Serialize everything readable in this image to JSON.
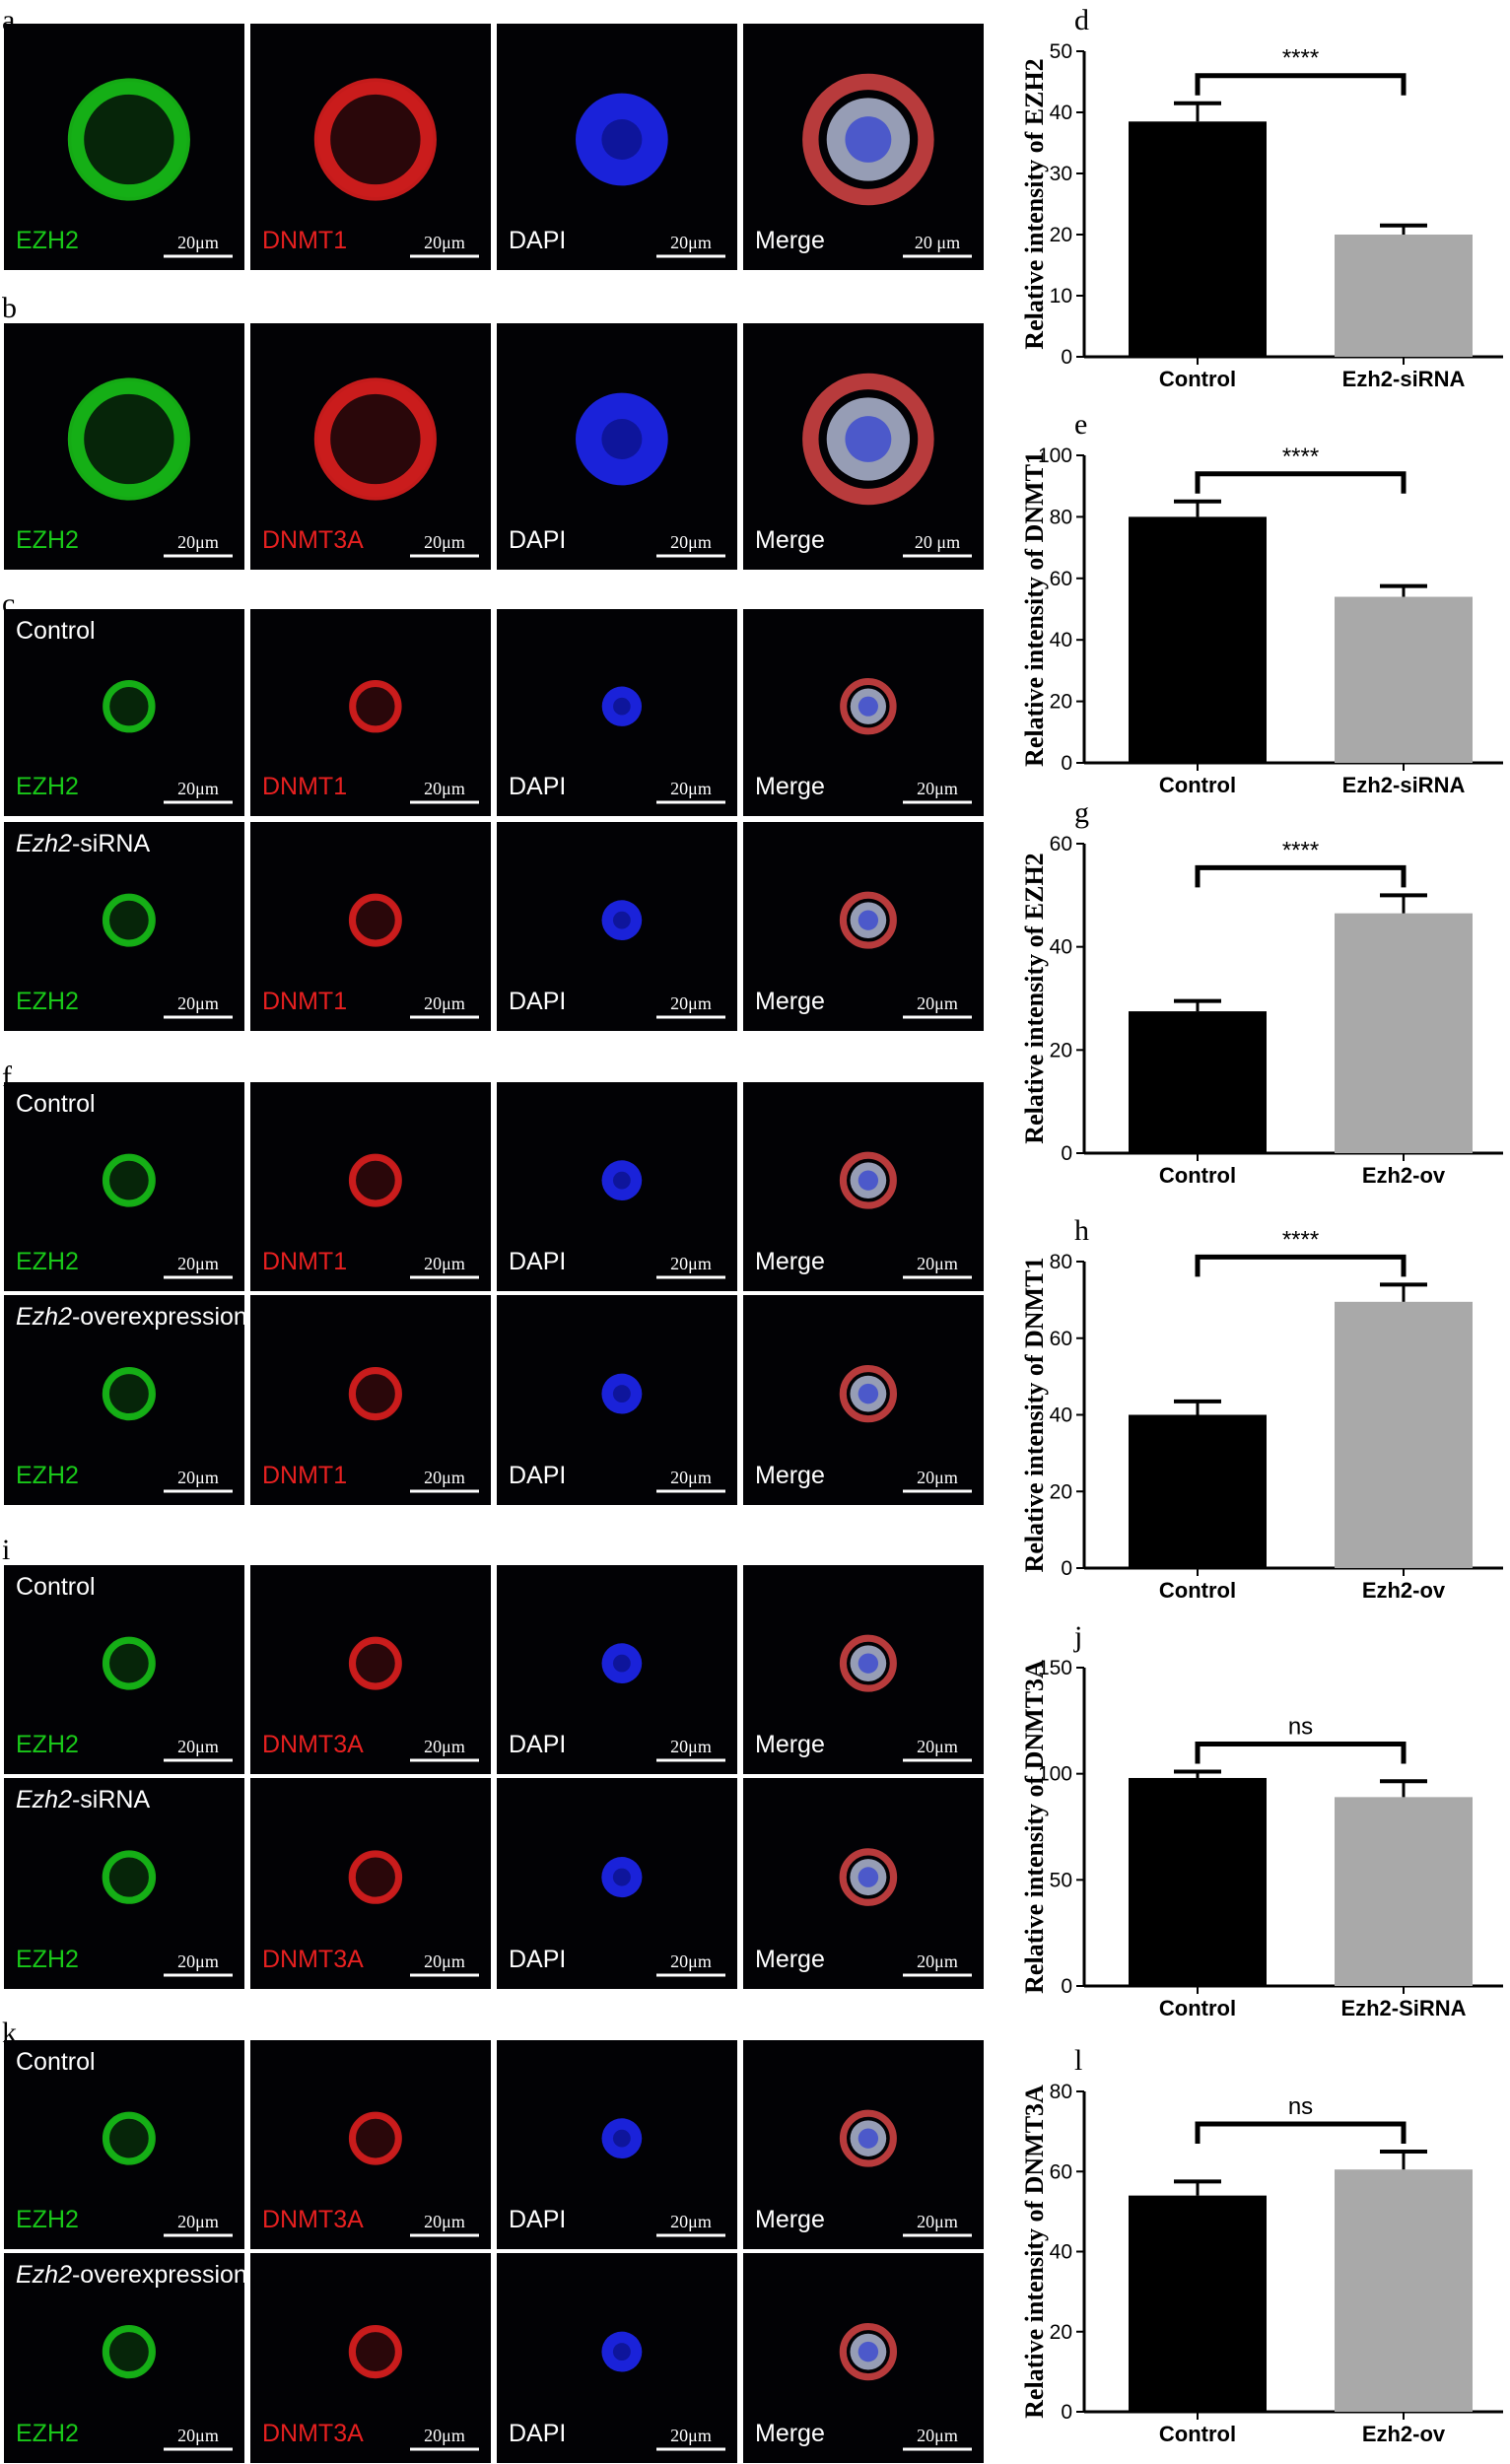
{
  "figure": {
    "micro_panels": [
      {
        "letter": "a",
        "rows": [
          {
            "title": "",
            "italic": "",
            "cells": [
              {
                "label": "EZH2",
                "color": "#19c819",
                "scale": "20μm",
                "kind": "ring"
              },
              {
                "label": "DNMT1",
                "color": "#e62020",
                "scale": "20μm",
                "kind": "ring"
              },
              {
                "label": "DAPI",
                "color": "#ffffff",
                "scale": "20μm",
                "kind": "nucleus"
              },
              {
                "label": "Merge",
                "color": "#ffffff",
                "scale": "20 μm",
                "kind": "merge"
              }
            ]
          }
        ]
      },
      {
        "letter": "b",
        "rows": [
          {
            "title": "",
            "italic": "",
            "cells": [
              {
                "label": "EZH2",
                "color": "#19c819",
                "scale": "20μm",
                "kind": "ring"
              },
              {
                "label": "DNMT3A",
                "color": "#e62020",
                "scale": "20μm",
                "kind": "ring"
              },
              {
                "label": "DAPI",
                "color": "#ffffff",
                "scale": "20μm",
                "kind": "nucleus"
              },
              {
                "label": "Merge",
                "color": "#ffffff",
                "scale": "20 μm",
                "kind": "merge"
              }
            ]
          }
        ]
      },
      {
        "letter": "c",
        "rows": [
          {
            "title": "Control",
            "italic": "",
            "cells": [
              {
                "label": "EZH2",
                "color": "#19c819",
                "scale": "20μm",
                "kind": "ring"
              },
              {
                "label": "DNMT1",
                "color": "#e62020",
                "scale": "20μm",
                "kind": "ring"
              },
              {
                "label": "DAPI",
                "color": "#ffffff",
                "scale": "20μm",
                "kind": "nucleus"
              },
              {
                "label": "Merge",
                "color": "#ffffff",
                "scale": "20μm",
                "kind": "merge"
              }
            ]
          },
          {
            "title": "-siRNA",
            "italic": "Ezh2",
            "cells": [
              {
                "label": "EZH2",
                "color": "#19c819",
                "scale": "20μm",
                "kind": "ring"
              },
              {
                "label": "DNMT1",
                "color": "#e62020",
                "scale": "20μm",
                "kind": "ring"
              },
              {
                "label": "DAPI",
                "color": "#ffffff",
                "scale": "20μm",
                "kind": "nucleus"
              },
              {
                "label": "Merge",
                "color": "#ffffff",
                "scale": "20μm",
                "kind": "merge"
              }
            ]
          }
        ]
      },
      {
        "letter": "f",
        "rows": [
          {
            "title": "Control",
            "italic": "",
            "cells": [
              {
                "label": "EZH2",
                "color": "#19c819",
                "scale": "20μm",
                "kind": "ring"
              },
              {
                "label": "DNMT1",
                "color": "#e62020",
                "scale": "20μm",
                "kind": "ring"
              },
              {
                "label": "DAPI",
                "color": "#ffffff",
                "scale": "20μm",
                "kind": "nucleus"
              },
              {
                "label": "Merge",
                "color": "#ffffff",
                "scale": "20μm",
                "kind": "merge"
              }
            ]
          },
          {
            "title": "-overexpression",
            "italic": "Ezh2",
            "cells": [
              {
                "label": "EZH2",
                "color": "#19c819",
                "scale": "20μm",
                "kind": "ring"
              },
              {
                "label": "DNMT1",
                "color": "#e62020",
                "scale": "20μm",
                "kind": "ring"
              },
              {
                "label": "DAPI",
                "color": "#ffffff",
                "scale": "20μm",
                "kind": "nucleus"
              },
              {
                "label": "Merge",
                "color": "#ffffff",
                "scale": "20μm",
                "kind": "merge"
              }
            ]
          }
        ]
      },
      {
        "letter": "i",
        "rows": [
          {
            "title": "Control",
            "italic": "",
            "cells": [
              {
                "label": "EZH2",
                "color": "#19c819",
                "scale": "20μm",
                "kind": "ring"
              },
              {
                "label": "DNMT3A",
                "color": "#e62020",
                "scale": "20μm",
                "kind": "ring"
              },
              {
                "label": "DAPI",
                "color": "#ffffff",
                "scale": "20μm",
                "kind": "nucleus"
              },
              {
                "label": "Merge",
                "color": "#ffffff",
                "scale": "20μm",
                "kind": "merge"
              }
            ]
          },
          {
            "title": "-siRNA",
            "italic": "Ezh2",
            "cells": [
              {
                "label": "EZH2",
                "color": "#19c819",
                "scale": "20μm",
                "kind": "ring"
              },
              {
                "label": "DNMT3A",
                "color": "#e62020",
                "scale": "20μm",
                "kind": "ring"
              },
              {
                "label": "DAPI",
                "color": "#ffffff",
                "scale": "20μm",
                "kind": "nucleus"
              },
              {
                "label": "Merge",
                "color": "#ffffff",
                "scale": "20μm",
                "kind": "merge"
              }
            ]
          }
        ]
      },
      {
        "letter": "k",
        "rows": [
          {
            "title": "Control",
            "italic": "",
            "cells": [
              {
                "label": "EZH2",
                "color": "#19c819",
                "scale": "20μm",
                "kind": "ring"
              },
              {
                "label": "DNMT3A",
                "color": "#e62020",
                "scale": "20μm",
                "kind": "ring"
              },
              {
                "label": "DAPI",
                "color": "#ffffff",
                "scale": "20μm",
                "kind": "nucleus"
              },
              {
                "label": "Merge",
                "color": "#ffffff",
                "scale": "20μm",
                "kind": "merge"
              }
            ]
          },
          {
            "title": "-overexpression",
            "italic": "Ezh2",
            "cells": [
              {
                "label": "EZH2",
                "color": "#19c819",
                "scale": "20μm",
                "kind": "ring"
              },
              {
                "label": "DNMT3A",
                "color": "#e62020",
                "scale": "20μm",
                "kind": "ring"
              },
              {
                "label": "DAPI",
                "color": "#ffffff",
                "scale": "20μm",
                "kind": "nucleus"
              },
              {
                "label": "Merge",
                "color": "#ffffff",
                "scale": "20μm",
                "kind": "merge"
              }
            ]
          }
        ]
      }
    ],
    "colors": {
      "control_bar": "#000000",
      "treatment_bar": "#a9a9a9",
      "dapi": "#1e28ff"
    }
  },
  "chart_data": [
    {
      "letter": "d",
      "type": "bar",
      "ylabel": "Relative intensity of EZH2",
      "categories": [
        "Control",
        "Ezh2-siRNA"
      ],
      "values": [
        38.5,
        20
      ],
      "errors": [
        3,
        1.5
      ],
      "ylim": [
        0,
        50
      ],
      "yticks": [
        0,
        10,
        20,
        30,
        40,
        50
      ],
      "significance": "****"
    },
    {
      "letter": "e",
      "type": "bar",
      "ylabel": "Relative intensity of DNMT1",
      "categories": [
        "Control",
        "Ezh2-siRNA"
      ],
      "values": [
        80,
        54
      ],
      "errors": [
        5,
        3.5
      ],
      "ylim": [
        0,
        100
      ],
      "yticks": [
        0,
        20,
        40,
        60,
        80,
        100
      ],
      "significance": "****"
    },
    {
      "letter": "g",
      "type": "bar",
      "ylabel": "Relative intensity of EZH2",
      "categories": [
        "Control",
        "Ezh2-ov"
      ],
      "values": [
        27.5,
        46.5
      ],
      "errors": [
        2,
        3.5
      ],
      "ylim": [
        0,
        60
      ],
      "yticks": [
        0,
        20,
        40,
        60
      ],
      "significance": "****"
    },
    {
      "letter": "h",
      "type": "bar",
      "ylabel": "Relative intensity of DNMT1",
      "categories": [
        "Control",
        "Ezh2-ov"
      ],
      "values": [
        40,
        69.5
      ],
      "errors": [
        3.5,
        4.5
      ],
      "ylim": [
        0,
        80
      ],
      "yticks": [
        0,
        20,
        40,
        60,
        80
      ],
      "significance": "****"
    },
    {
      "letter": "j",
      "type": "bar",
      "ylabel": "Relative intensity of DNMT3A",
      "categories": [
        "Control",
        "Ezh2-SiRNA"
      ],
      "values": [
        98,
        89
      ],
      "errors": [
        3,
        7.5
      ],
      "ylim": [
        0,
        150
      ],
      "yticks": [
        0,
        50,
        100,
        150
      ],
      "significance": "ns"
    },
    {
      "letter": "l",
      "type": "bar",
      "ylabel": "Relative intensity of DNMT3A",
      "categories": [
        "Control",
        "Ezh2-ov"
      ],
      "values": [
        54,
        60.5
      ],
      "errors": [
        3.5,
        4.5
      ],
      "ylim": [
        0,
        80
      ],
      "yticks": [
        0,
        20,
        40,
        60,
        80
      ],
      "significance": "ns"
    }
  ]
}
